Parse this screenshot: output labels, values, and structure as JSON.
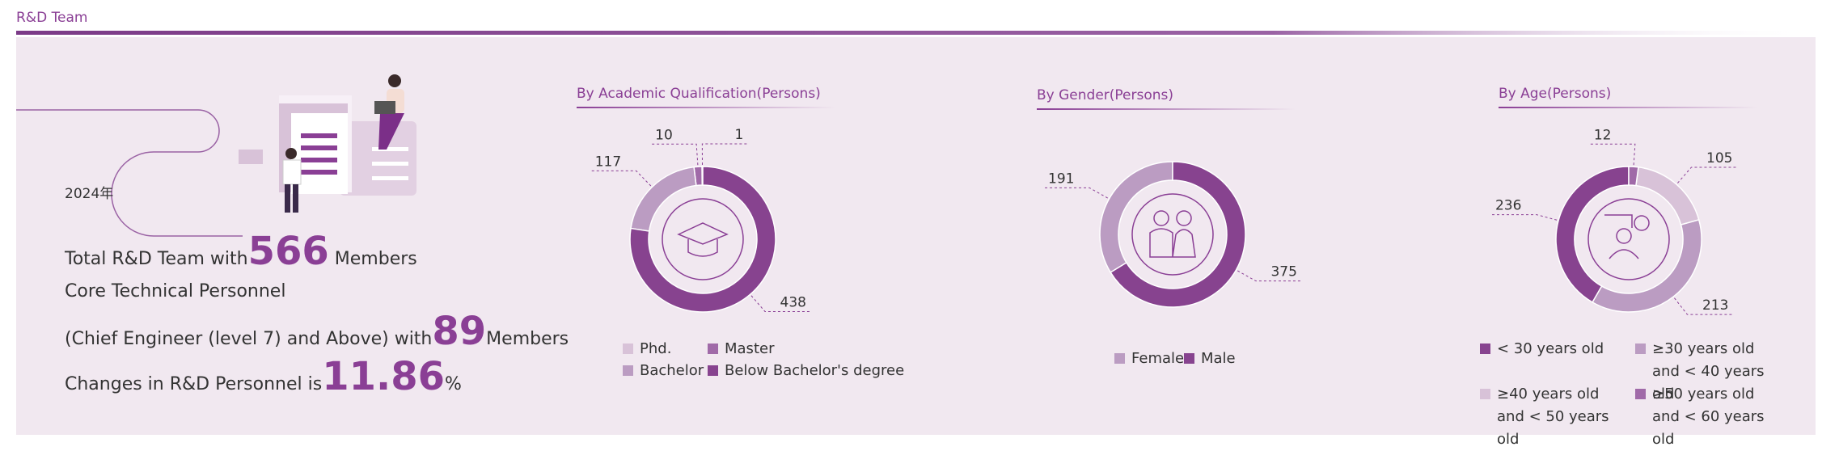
{
  "header": {
    "title": "R&D Team"
  },
  "summary": {
    "year": "2024年",
    "line1": {
      "text": "Total R&D Team with",
      "number": 566,
      "unit": "Members"
    },
    "line2": {
      "text": "Core Technical Personnel"
    },
    "line3": {
      "text": "(Chief Engineer (level 7) and Above) with",
      "number": 89,
      "unit": "Members"
    },
    "line4": {
      "text": "Changes in R&D Personnel is",
      "number": 11.86,
      "unit": "%"
    }
  },
  "chart_data": [
    {
      "type": "donut",
      "title": "By Academic Qualification(Persons)",
      "categories": [
        "Phd.",
        "Master",
        "Bachelor",
        "Below Bachelor's degree"
      ],
      "values": [
        1,
        10,
        117,
        438
      ],
      "colors": [
        "#d8c2d8",
        "#a06aa8",
        "#bb9cc2",
        "#87438f"
      ]
    },
    {
      "type": "donut",
      "title": "By Gender(Persons)",
      "categories": [
        "Female",
        "Male"
      ],
      "values": [
        191,
        375
      ],
      "colors": [
        "#bb9cc2",
        "#87438f"
      ]
    },
    {
      "type": "donut",
      "title": "By Age(Persons)",
      "categories": [
        "< 30 years old",
        "≥30 years old and < 40 years old",
        "≥40 years old and < 50 years old",
        "≥50 years old and < 60 years old"
      ],
      "values": [
        236,
        213,
        105,
        12
      ],
      "colors": [
        "#87438f",
        "#bb9cc2",
        "#d8c2d8",
        "#a06aa8"
      ]
    }
  ]
}
